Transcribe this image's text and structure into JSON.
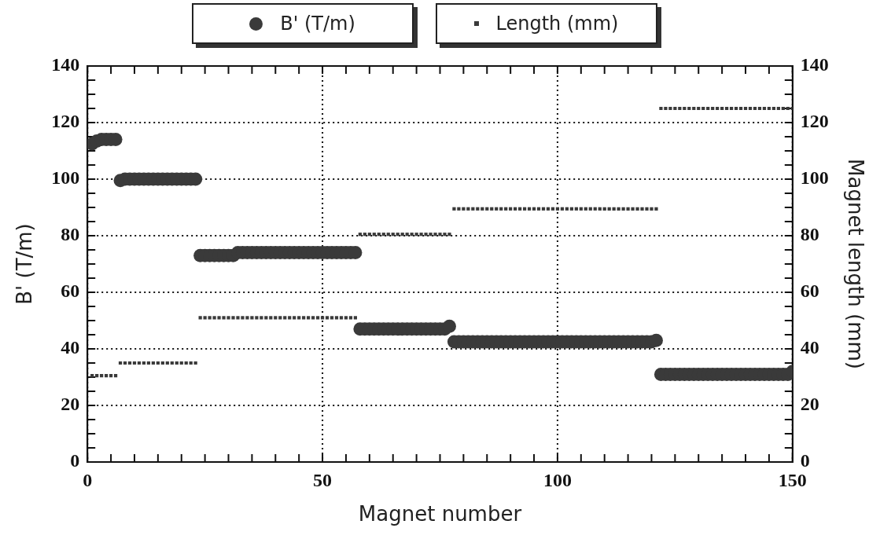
{
  "chart_data": {
    "type": "scatter",
    "xlabel": "Magnet number",
    "ylabel": "B' (T/m)",
    "y2label": "Magnet length (mm)",
    "legend": "top",
    "grid": true,
    "x": [
      1,
      2,
      3,
      4,
      5,
      6,
      7,
      8,
      9,
      10,
      11,
      12,
      13,
      14,
      15,
      16,
      17,
      18,
      19,
      20,
      21,
      22,
      23,
      24,
      25,
      26,
      27,
      28,
      29,
      30,
      31,
      32,
      33,
      34,
      35,
      36,
      37,
      38,
      39,
      40,
      41,
      42,
      43,
      44,
      45,
      46,
      47,
      48,
      49,
      50,
      51,
      52,
      53,
      54,
      55,
      56,
      57,
      58,
      59,
      60,
      61,
      62,
      63,
      64,
      65,
      66,
      67,
      68,
      69,
      70,
      71,
      72,
      73,
      74,
      75,
      76,
      77,
      78,
      79,
      80,
      81,
      82,
      83,
      84,
      85,
      86,
      87,
      88,
      89,
      90,
      91,
      92,
      93,
      94,
      95,
      96,
      97,
      98,
      99,
      100,
      101,
      102,
      103,
      104,
      105,
      106,
      107,
      108,
      109,
      110,
      111,
      112,
      113,
      114,
      115,
      116,
      117,
      118,
      119,
      120,
      121,
      122,
      123,
      124,
      125,
      126,
      127,
      128,
      129,
      130,
      131,
      132,
      133,
      134,
      135,
      136,
      137,
      138,
      139,
      140,
      141,
      142,
      143,
      144,
      145,
      146,
      147,
      148,
      149,
      150
    ],
    "series": [
      {
        "name": "B' (T/m)",
        "color": "#3a3a3a",
        "marker": "circle",
        "values": [
          112.5,
          113.5,
          114,
          114,
          114,
          114,
          99.5,
          100,
          100,
          100,
          100,
          100,
          100,
          100,
          100,
          100,
          100,
          100,
          100,
          100,
          100,
          100,
          100,
          73,
          73,
          73,
          73,
          73,
          73,
          73,
          73,
          74,
          74,
          74,
          74,
          74,
          74,
          74,
          74,
          74,
          74,
          74,
          74,
          74,
          74,
          74,
          74,
          74,
          74,
          74,
          74,
          74,
          74,
          74,
          74,
          74,
          74,
          47,
          47,
          47,
          47,
          47,
          47,
          47,
          47,
          47,
          47,
          47,
          47,
          47,
          47,
          47,
          47,
          47,
          47,
          47,
          48,
          42.5,
          42.5,
          42.5,
          42.5,
          42.5,
          42.5,
          42.5,
          42.5,
          42.5,
          42.5,
          42.5,
          42.5,
          42.5,
          42.5,
          42.5,
          42.5,
          42.5,
          42.5,
          42.5,
          42.5,
          42.5,
          42.5,
          42.5,
          42.5,
          42.5,
          42.5,
          42.5,
          42.5,
          42.5,
          42.5,
          42.5,
          42.5,
          42.5,
          42.5,
          42.5,
          42.5,
          42.5,
          42.5,
          42.5,
          42.5,
          42.5,
          42.5,
          42.5,
          43,
          31,
          31,
          31,
          31,
          31,
          31,
          31,
          31,
          31,
          31,
          31,
          31,
          31,
          31,
          31,
          31,
          31,
          31,
          31,
          31,
          31,
          31,
          31,
          31,
          31,
          31,
          31,
          31,
          32
        ]
      },
      {
        "name": "Length (mm)",
        "color": "#3a3a3a",
        "marker": "square",
        "axis": "y2",
        "values": [
          30.5,
          30.5,
          30.5,
          30.5,
          30.5,
          30.5,
          35,
          35,
          35,
          35,
          35,
          35,
          35,
          35,
          35,
          35,
          35,
          35,
          35,
          35,
          35,
          35,
          35,
          51,
          51,
          51,
          51,
          51,
          51,
          51,
          51,
          51,
          51,
          51,
          51,
          51,
          51,
          51,
          51,
          51,
          51,
          51,
          51,
          51,
          51,
          51,
          51,
          51,
          51,
          51,
          51,
          51,
          51,
          51,
          51,
          51,
          51,
          80.5,
          80.5,
          80.5,
          80.5,
          80.5,
          80.5,
          80.5,
          80.5,
          80.5,
          80.5,
          80.5,
          80.5,
          80.5,
          80.5,
          80.5,
          80.5,
          80.5,
          80.5,
          80.5,
          80.5,
          89.5,
          89.5,
          89.5,
          89.5,
          89.5,
          89.5,
          89.5,
          89.5,
          89.5,
          89.5,
          89.5,
          89.5,
          89.5,
          89.5,
          89.5,
          89.5,
          89.5,
          89.5,
          89.5,
          89.5,
          89.5,
          89.5,
          89.5,
          89.5,
          89.5,
          89.5,
          89.5,
          89.5,
          89.5,
          89.5,
          89.5,
          89.5,
          89.5,
          89.5,
          89.5,
          89.5,
          89.5,
          89.5,
          89.5,
          89.5,
          89.5,
          89.5,
          89.5,
          89.5,
          125,
          125,
          125,
          125,
          125,
          125,
          125,
          125,
          125,
          125,
          125,
          125,
          125,
          125,
          125,
          125,
          125,
          125,
          125,
          125,
          125,
          125,
          125,
          125,
          125,
          125,
          125,
          125,
          125
        ]
      }
    ],
    "xlim": [
      0,
      150
    ],
    "xticks": [
      0,
      {
        "value": 5,
        "label": null
      },
      {
        "value": 10,
        "label": null
      },
      {
        "value": 15,
        "label": null
      },
      {
        "value": 20,
        "label": null
      },
      {
        "value": 25,
        "label": null
      },
      {
        "value": 30,
        "label": null
      },
      {
        "value": 35,
        "label": null
      },
      {
        "value": 40,
        "label": null
      },
      {
        "value": 45,
        "label": null
      },
      50,
      {
        "value": 55,
        "label": null
      },
      {
        "value": 60,
        "label": null
      },
      {
        "value": 65,
        "label": null
      },
      {
        "value": 70,
        "label": null
      },
      {
        "value": 75,
        "label": null
      },
      {
        "value": 80,
        "label": null
      },
      {
        "value": 85,
        "label": null
      },
      {
        "value": 90,
        "label": null
      },
      {
        "value": 95,
        "label": null
      },
      100,
      {
        "value": 105,
        "label": null
      },
      {
        "value": 110,
        "label": null
      },
      {
        "value": 115,
        "label": null
      },
      {
        "value": 120,
        "label": null
      },
      {
        "value": 125,
        "label": null
      },
      {
        "value": 130,
        "label": null
      },
      {
        "value": 135,
        "label": null
      },
      {
        "value": 140,
        "label": null
      },
      {
        "value": 145,
        "label": null
      },
      150
    ],
    "ylim": [
      0,
      140
    ],
    "yticks": [
      0,
      {
        "value": 5,
        "label": null
      },
      {
        "value": 10,
        "label": null
      },
      {
        "value": 15,
        "label": null
      },
      20,
      {
        "value": 25,
        "label": null
      },
      {
        "value": 30,
        "label": null
      },
      {
        "value": 35,
        "label": null
      },
      40,
      {
        "value": 45,
        "label": null
      },
      {
        "value": 50,
        "label": null
      },
      {
        "value": 55,
        "label": null
      },
      60,
      {
        "value": 65,
        "label": null
      },
      {
        "value": 70,
        "label": null
      },
      {
        "value": 75,
        "label": null
      },
      80,
      {
        "value": 85,
        "label": null
      },
      {
        "value": 90,
        "label": null
      },
      {
        "value": 95,
        "label": null
      },
      100,
      {
        "value": 105,
        "label": null
      },
      {
        "value": 110,
        "label": null
      },
      {
        "value": 115,
        "label": null
      },
      120,
      {
        "value": 125,
        "label": null
      },
      {
        "value": 130,
        "label": null
      },
      {
        "value": 135,
        "label": null
      },
      140
    ],
    "y2lim": [
      0,
      140
    ],
    "y2ticks": [
      0,
      {
        "value": 5,
        "label": null
      },
      {
        "value": 10,
        "label": null
      },
      {
        "value": 15,
        "label": null
      },
      20,
      {
        "value": 25,
        "label": null
      },
      {
        "value": 30,
        "label": null
      },
      {
        "value": 35,
        "label": null
      },
      40,
      {
        "value": 45,
        "label": null
      },
      {
        "value": 50,
        "label": null
      },
      {
        "value": 55,
        "label": null
      },
      60,
      {
        "value": 65,
        "label": null
      },
      {
        "value": 70,
        "label": null
      },
      {
        "value": 75,
        "label": null
      },
      80,
      {
        "value": 85,
        "label": null
      },
      {
        "value": 90,
        "label": null
      },
      {
        "value": 95,
        "label": null
      },
      100,
      {
        "value": 105,
        "label": null
      },
      {
        "value": 110,
        "label": null
      },
      {
        "value": 115,
        "label": null
      },
      120,
      {
        "value": 125,
        "label": null
      },
      {
        "value": 130,
        "label": null
      },
      {
        "value": 135,
        "label": null
      },
      140
    ]
  }
}
